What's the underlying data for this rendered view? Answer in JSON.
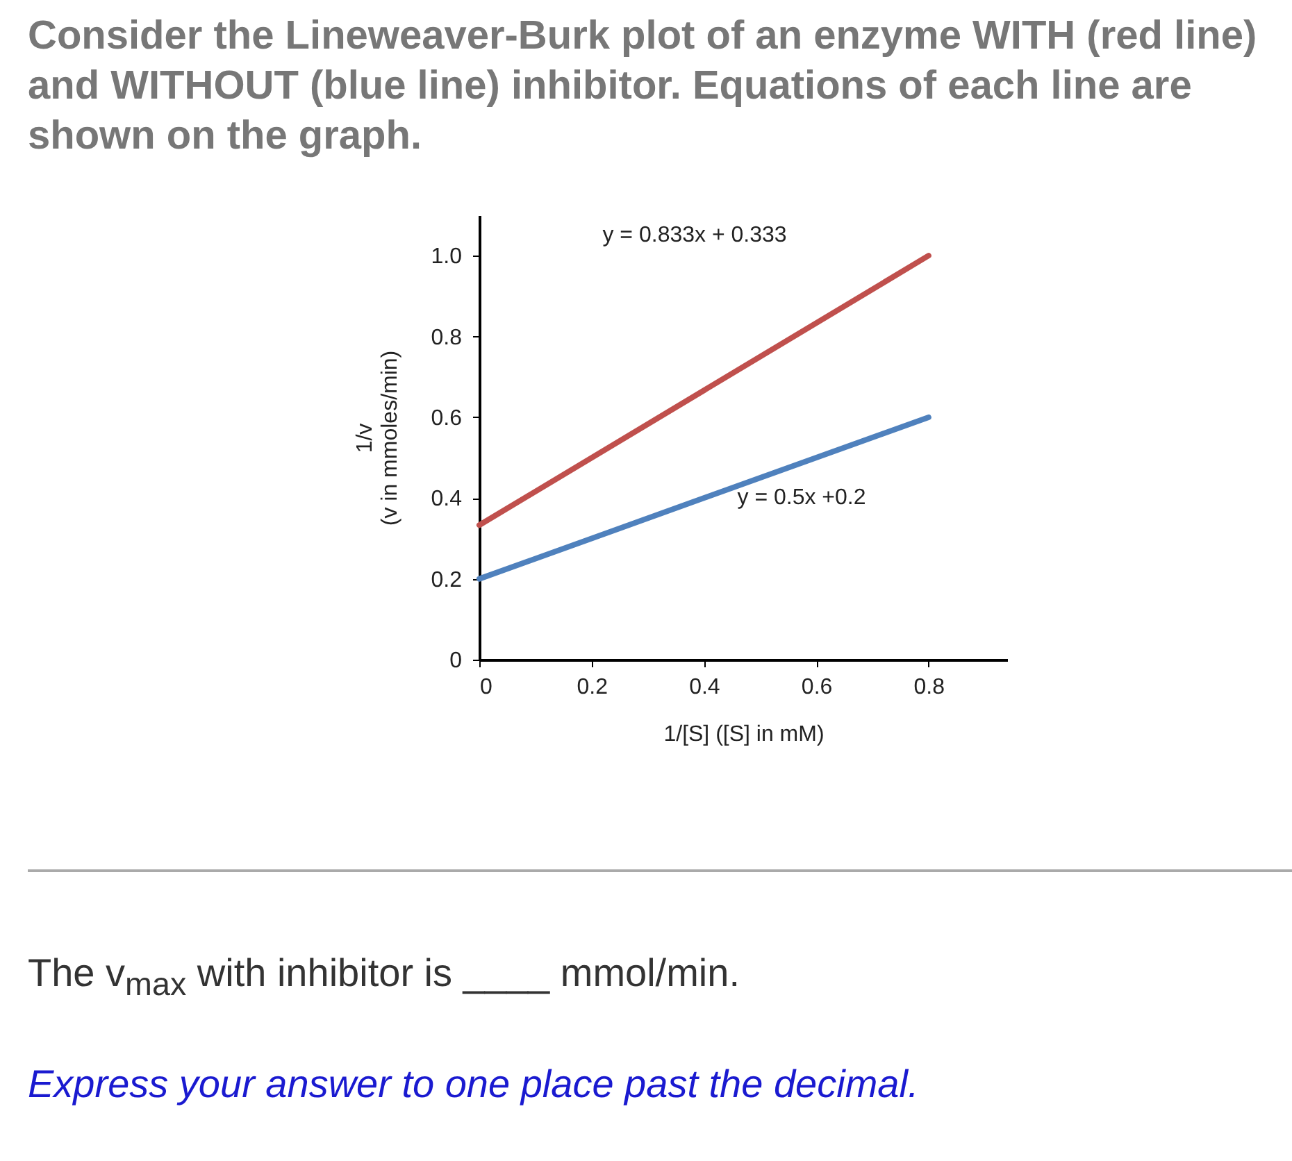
{
  "chart_data": {
    "type": "line",
    "title": "Consider the Lineweaver-Burk plot of an enzyme WITH (red line) and WITHOUT (blue line) inhibitor. Equations of each line are shown on the graph.",
    "xlabel": "1/[S] ([S] in mM)",
    "ylabel": "1/v\n(v in mmoles/min)",
    "x": [
      0,
      0.8
    ],
    "series": [
      {
        "color": "#c0504d",
        "values": [
          0.333,
          1.0
        ]
      },
      {
        "color": "#4f81bd",
        "values": [
          0.2,
          0.6
        ]
      }
    ],
    "xlim": [
      0,
      0.94
    ],
    "ylim": [
      0,
      1.1
    ],
    "xticks": [
      0,
      0.2,
      0.4,
      0.6,
      0.8
    ],
    "yticks": [
      0,
      0.2,
      0.4,
      0.6,
      0.8,
      {
        "value": 1,
        "label": "1.0"
      }
    ],
    "annotations": [
      "y = 0.833x + 0.333",
      "y = 0.5x +0.2",
      "The v$_{max}$ with inhibitor is ____ mmol/min.",
      "Express your answer to one place past the decimal."
    ],
    "marker": "none",
    "line_style": "solid"
  }
}
